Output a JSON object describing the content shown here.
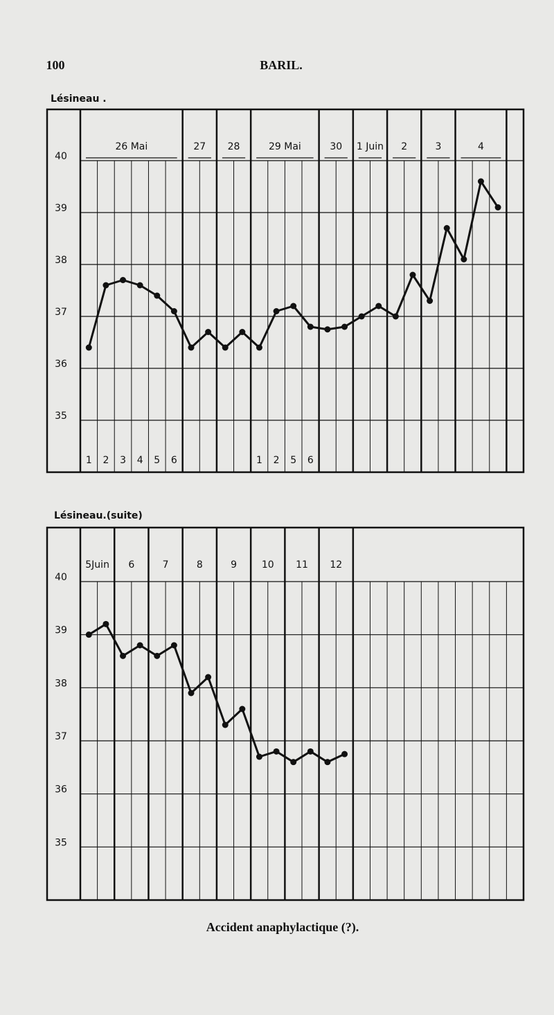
{
  "header": {
    "page_number": "100",
    "running_title": "BARIL."
  },
  "chart_data": [
    {
      "type": "line",
      "title": "Lésineau .",
      "groups": [
        {
          "label": "26 Mai",
          "size": 6
        },
        {
          "label": "27",
          "size": 2
        },
        {
          "label": "28",
          "size": 2
        },
        {
          "label": "29 Mai",
          "size": 4
        },
        {
          "label": "30",
          "size": 2
        },
        {
          "label": "1 Juin",
          "size": 2
        },
        {
          "label": "2",
          "size": 2
        },
        {
          "label": "3",
          "size": 2
        },
        {
          "label": "4",
          "size": 3
        },
        {
          "label": null,
          "size": 1
        }
      ],
      "categories": [
        "1",
        "2",
        "3",
        "4",
        "5",
        "6",
        null,
        null,
        null,
        null,
        "1",
        "2",
        "5",
        "6",
        null,
        null,
        null,
        null,
        null,
        null,
        null,
        null,
        null,
        null,
        null,
        null
      ],
      "values": [
        36.4,
        37.6,
        37.7,
        37.6,
        37.4,
        37.1,
        36.4,
        36.7,
        36.4,
        36.7,
        36.4,
        37.1,
        37.2,
        36.8,
        36.75,
        36.8,
        37.0,
        37.2,
        37.0,
        37.8,
        37.3,
        38.7,
        38.1,
        39.6,
        39.1,
        null
      ],
      "color": "#111111",
      "ylim": [
        34,
        40
      ],
      "yticks": [
        35,
        36,
        37,
        38,
        39,
        40
      ],
      "grid": true
    },
    {
      "type": "line",
      "title": "Lésineau.(suite)",
      "groups": [
        {
          "label": "5Juin",
          "size": 2
        },
        {
          "label": "6",
          "size": 2
        },
        {
          "label": "7",
          "size": 2
        },
        {
          "label": "8",
          "size": 2
        },
        {
          "label": "9",
          "size": 2
        },
        {
          "label": "10",
          "size": 2
        },
        {
          "label": "11",
          "size": 2
        },
        {
          "label": "12",
          "size": 2
        },
        {
          "label": null,
          "size": 10
        }
      ],
      "values": [
        39.0,
        39.2,
        38.6,
        38.8,
        38.6,
        38.8,
        37.9,
        38.2,
        37.3,
        37.6,
        36.7,
        36.8,
        36.6,
        36.8,
        36.6,
        36.75,
        null,
        null,
        null,
        null,
        null,
        null,
        null,
        null,
        null,
        null
      ],
      "color": "#111111",
      "ylim": [
        34,
        40
      ],
      "yticks": [
        35,
        36,
        37,
        38,
        39,
        40
      ],
      "grid": true
    }
  ],
  "caption": "Accident anaphylactique (?)."
}
